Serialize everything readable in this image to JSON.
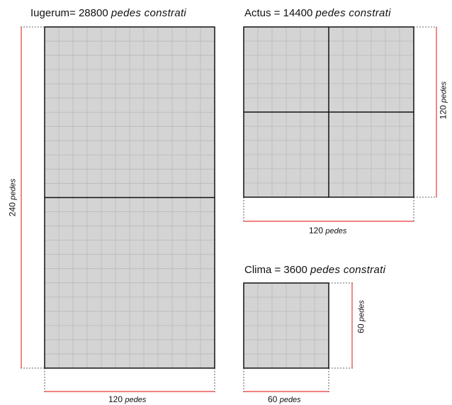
{
  "iugerum": {
    "title_prefix": "Iugerum= 28800",
    "title_unit": "pedes constrati",
    "height_value": "240",
    "width_value": "120",
    "unit": "pedes"
  },
  "actus": {
    "title_prefix": "Actus = 14400",
    "title_unit": "pedes constrati",
    "height_value": "120",
    "width_value": "120",
    "unit": "pedes"
  },
  "clima": {
    "title_prefix": "Clima = 3600",
    "title_unit": "pedes constrati",
    "height_value": "60",
    "width_value": "60",
    "unit": "pedes"
  },
  "colors": {
    "fill": "#d4d4d4",
    "grid": "#b9b9b9",
    "outline": "#111111",
    "dimension_line": "#e53935"
  }
}
